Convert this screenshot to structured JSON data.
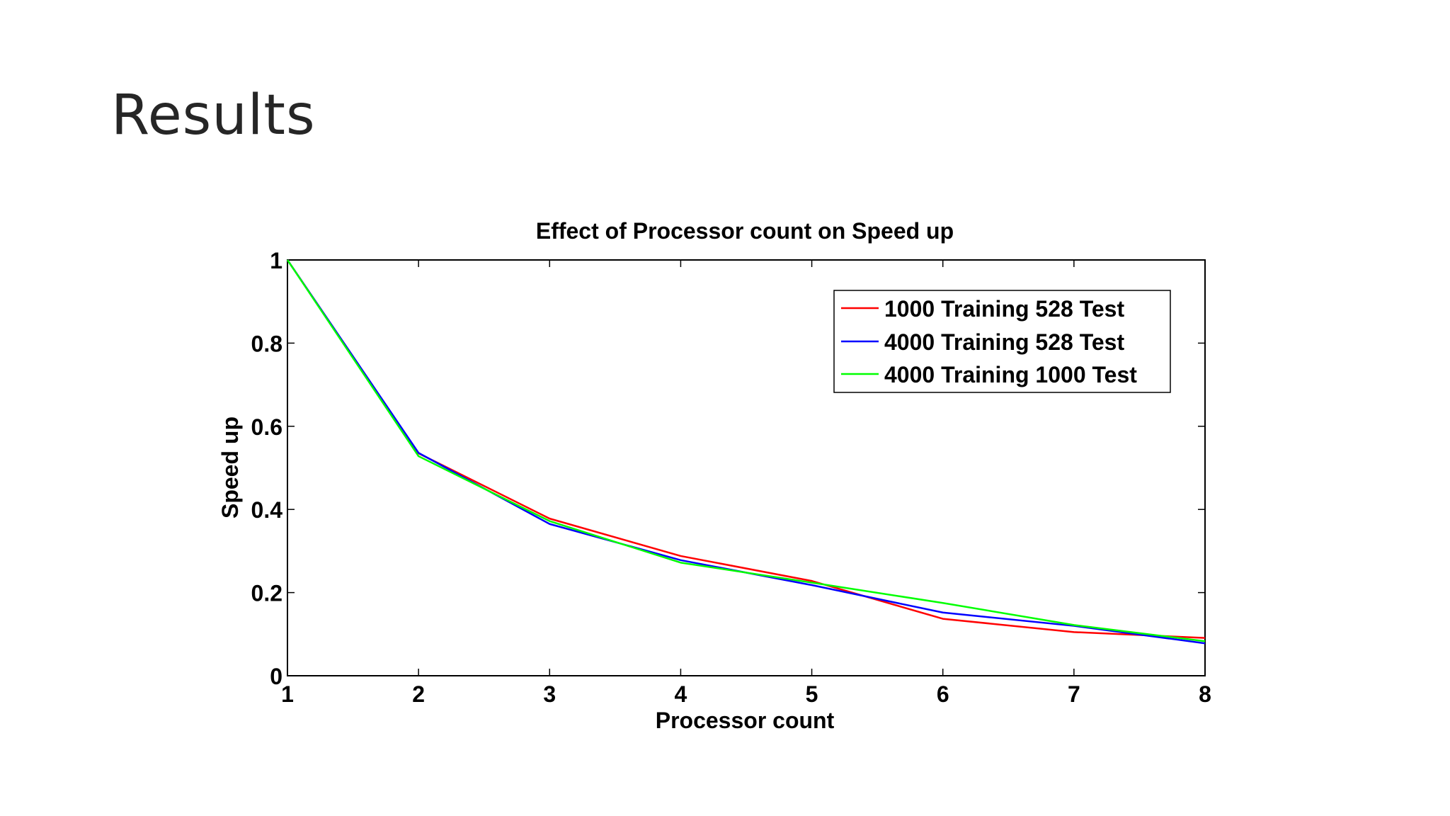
{
  "slide": {
    "title": "Results"
  },
  "chart_data": {
    "type": "line",
    "title": "Effect of Processor count on Speed up",
    "xlabel": "Processor count",
    "ylabel": "Speed up",
    "xlim": [
      1,
      8
    ],
    "ylim": [
      0,
      1
    ],
    "xticks": [
      "1",
      "2",
      "3",
      "4",
      "5",
      "6",
      "7",
      "8"
    ],
    "yticks": [
      "0",
      "0.2",
      "0.4",
      "0.6",
      "0.8",
      "1"
    ],
    "x": [
      1,
      2,
      3,
      4,
      5,
      6,
      7,
      8
    ],
    "grid": false,
    "legend_position": "top-right",
    "series": [
      {
        "name": "1000 Training 528 Test",
        "color": "#ff0000",
        "values": [
          1.0,
          0.535,
          0.378,
          0.288,
          0.228,
          0.137,
          0.105,
          0.091
        ]
      },
      {
        "name": "4000 Training 528 Test",
        "color": "#0000ff",
        "values": [
          1.0,
          0.536,
          0.365,
          0.278,
          0.218,
          0.152,
          0.12,
          0.078
        ]
      },
      {
        "name": "4000 Training 1000 Test",
        "color": "#00ff00",
        "values": [
          1.0,
          0.528,
          0.372,
          0.272,
          0.224,
          0.175,
          0.122,
          0.083
        ]
      }
    ]
  }
}
